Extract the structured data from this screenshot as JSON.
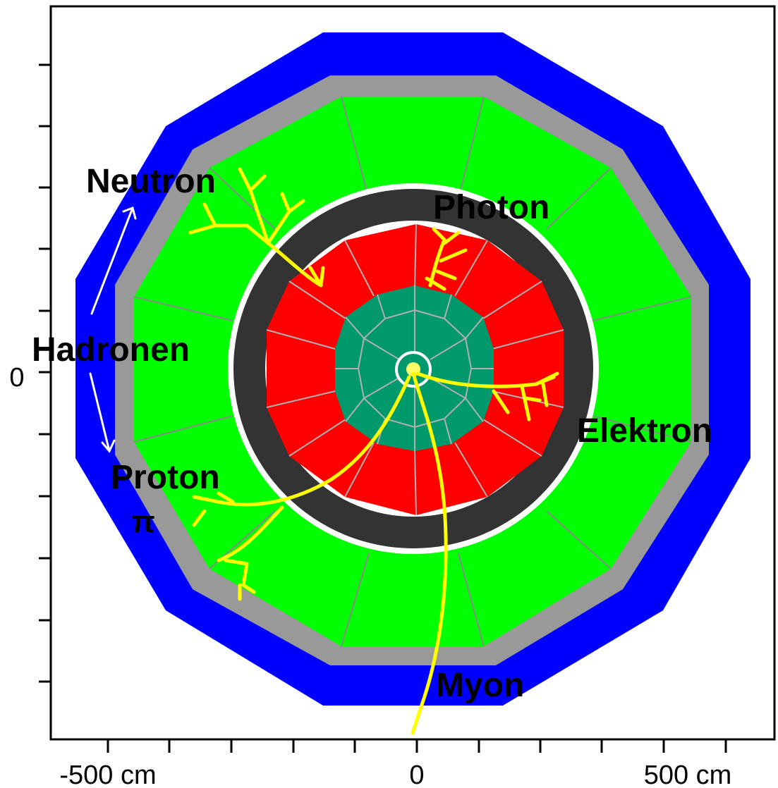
{
  "x_axis": {
    "unit": "cm",
    "tick_labels": [
      "-500 cm",
      "0",
      "500 cm"
    ]
  },
  "y_axis": {
    "tick_labels": [
      "0"
    ]
  },
  "labels": {
    "neutron": "Neutron",
    "photon": "Photon",
    "hadronen": "Hadronen",
    "elektron": "Elektron",
    "proton": "Proton",
    "pi": "π",
    "myon": "Myon"
  },
  "colors": {
    "frame": "#000000",
    "muon_system": "#0000ff",
    "hadron_calorimeter": "#00ff00",
    "iron_return_yoke": "#999999",
    "solenoid_coil": "#333333",
    "em_calorimeter": "#ff0000",
    "tracker": "#00996b",
    "tracks": "#ffff00",
    "arrows": "#ffffff"
  },
  "layers": [
    "muon-system",
    "iron-return-yoke",
    "hadron-calorimeter",
    "solenoid-coil",
    "em-calorimeter",
    "tracker",
    "beam-pipe"
  ]
}
